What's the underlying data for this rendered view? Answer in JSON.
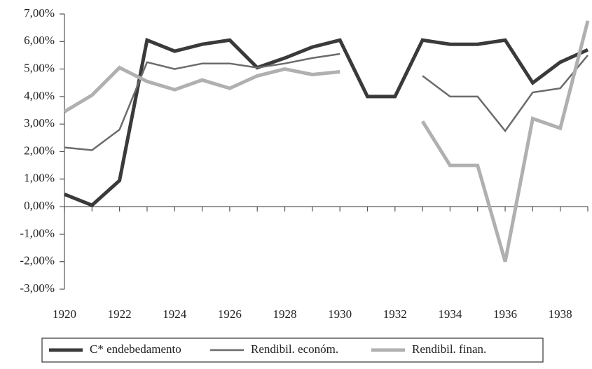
{
  "chart_data": {
    "type": "line",
    "x": [
      1920,
      1921,
      1922,
      1923,
      1924,
      1925,
      1926,
      1927,
      1928,
      1929,
      1930,
      1931,
      1932,
      1933,
      1934,
      1935,
      1936,
      1937,
      1938,
      1939
    ],
    "series": [
      {
        "name": "C* endebedamento",
        "color": "#3a3a3a",
        "values": [
          0.45,
          0.05,
          0.95,
          6.05,
          5.65,
          5.9,
          6.05,
          5.05,
          5.4,
          5.8,
          6.05,
          4.0,
          4.0,
          6.05,
          5.9,
          5.9,
          6.05,
          4.5,
          5.25,
          5.7
        ]
      },
      {
        "name": "Rendibil. económ.",
        "color": "#6b6b6b",
        "values": [
          2.15,
          2.05,
          2.8,
          5.25,
          5.0,
          5.2,
          5.2,
          5.05,
          5.2,
          5.4,
          5.55,
          null,
          null,
          4.75,
          4.0,
          4.0,
          2.75,
          4.15,
          4.3,
          5.5
        ]
      },
      {
        "name": "Rendibil. finan.",
        "color": "#b0b0b0",
        "values": [
          3.45,
          4.05,
          5.05,
          4.55,
          4.25,
          4.6,
          4.3,
          4.75,
          5.0,
          4.8,
          4.9,
          null,
          null,
          3.1,
          1.5,
          1.5,
          -2.0,
          3.2,
          2.85,
          6.75
        ]
      }
    ],
    "xlim": [
      1920,
      1939
    ],
    "xticks": [
      1920,
      1922,
      1924,
      1926,
      1928,
      1930,
      1932,
      1934,
      1936,
      1938
    ],
    "ylim": [
      -3,
      7
    ],
    "yticks": [
      {
        "value": -3,
        "label": "-3,00%"
      },
      {
        "value": -2,
        "label": "-2,00%"
      },
      {
        "value": -1,
        "label": "-1,00%"
      },
      {
        "value": 0,
        "label": "0,00%"
      },
      {
        "value": 1,
        "label": "1,00%"
      },
      {
        "value": 2,
        "label": "2,00%"
      },
      {
        "value": 3,
        "label": "3,00%"
      },
      {
        "value": 4,
        "label": "4,00%"
      },
      {
        "value": 5,
        "label": "5,00%"
      },
      {
        "value": 6,
        "label": "6,00%"
      },
      {
        "value": 7,
        "label": "7,00%"
      }
    ],
    "grid": false,
    "legend": "bottom"
  }
}
